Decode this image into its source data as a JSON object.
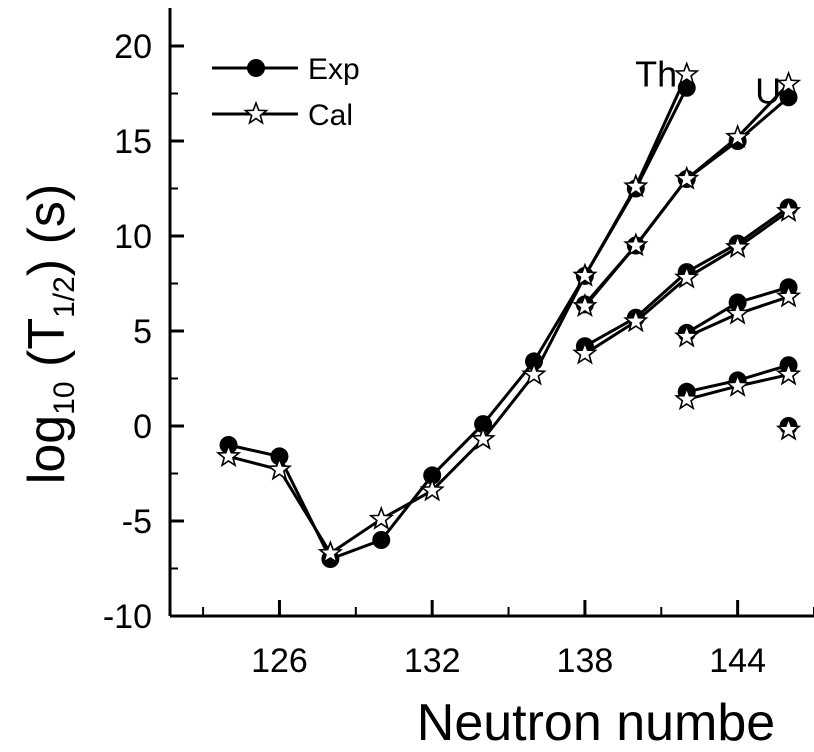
{
  "chart_data": {
    "type": "line",
    "xlabel": "Neutron numbe",
    "ylabel": {
      "base": "log",
      "sub1": "10",
      "mid": " (T",
      "sub2": "1/2",
      "tail": ") (s)"
    },
    "xlim": [
      121.7,
      147
    ],
    "ylim": [
      -10,
      22
    ],
    "x_ticks": [
      126,
      132,
      138,
      144
    ],
    "y_ticks": [
      -10,
      -5,
      0,
      5,
      10,
      15,
      20
    ],
    "legend": {
      "position": "top-left",
      "entries": [
        {
          "label": "Exp",
          "marker": "filled-circle"
        },
        {
          "label": "Cal",
          "marker": "open-star"
        }
      ]
    },
    "annotations": [
      {
        "text": "Th",
        "x": 140.8,
        "y": 18.5
      },
      {
        "text": "U",
        "x": 145.2,
        "y": 17.6
      }
    ],
    "series": [
      {
        "x": [
          124,
          126,
          128,
          130,
          132,
          134,
          136,
          138,
          140,
          142
        ],
        "exp": [
          -1.0,
          -1.6,
          -7.0,
          -6.0,
          -2.6,
          0.1,
          3.4,
          7.9,
          12.5,
          17.8
        ],
        "cal": [
          -1.6,
          -2.3,
          -6.7,
          -4.9,
          -3.4,
          -0.7,
          2.7,
          7.9,
          12.6,
          18.5
        ]
      },
      {
        "x": [
          138,
          140,
          142,
          144,
          146
        ],
        "exp": [
          6.4,
          9.5,
          13.0,
          15.0,
          17.3
        ],
        "cal": [
          6.3,
          9.5,
          13.0,
          15.2,
          18.0
        ]
      },
      {
        "x": [
          138,
          140,
          142,
          144,
          146
        ],
        "exp": [
          4.2,
          5.7,
          8.1,
          9.6,
          11.5
        ],
        "cal": [
          3.8,
          5.5,
          7.8,
          9.4,
          11.3
        ]
      },
      {
        "x": [
          142,
          144,
          146
        ],
        "exp": [
          4.9,
          6.5,
          7.3
        ],
        "cal": [
          4.7,
          5.9,
          6.8
        ]
      },
      {
        "x": [
          142,
          144,
          146
        ],
        "exp": [
          1.8,
          2.4,
          3.2
        ],
        "cal": [
          1.4,
          2.1,
          2.7
        ]
      },
      {
        "x": [
          146
        ],
        "exp": [
          0.0
        ],
        "cal": [
          -0.2
        ]
      }
    ]
  }
}
